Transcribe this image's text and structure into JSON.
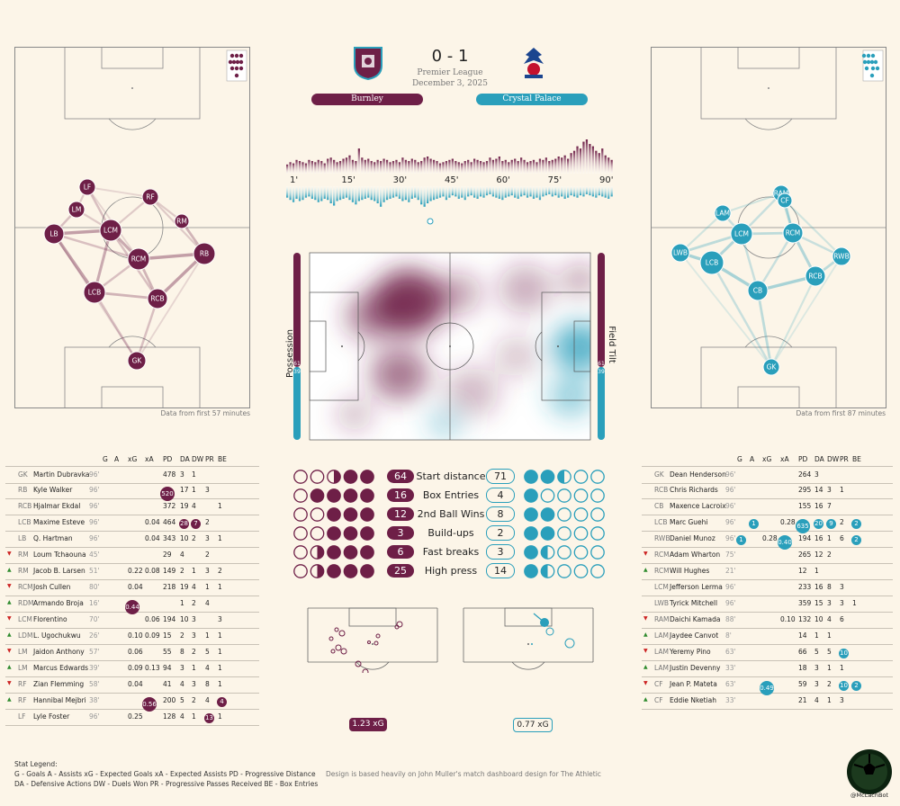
{
  "colors": {
    "home": "#6e1f47",
    "away": "#2a9fbb",
    "bg": "#fcf5e8"
  },
  "header": {
    "score": "0 - 1",
    "competition": "Premier League",
    "date": "December 3, 2025",
    "home_team": "Burnley",
    "away_team": "Crystal Palace"
  },
  "home_pitch_note": "Data from first 57 minutes",
  "away_pitch_note": "Data from first 87 minutes",
  "home_positions": [
    "LF",
    "RF",
    "LM",
    "RM",
    "LCM",
    "LB",
    "RCM",
    "RB",
    "LCB",
    "RCB",
    "GK"
  ],
  "away_positions": [
    "RAM",
    "CF",
    "LAM",
    "LCM",
    "RCM",
    "LWB",
    "RWB",
    "LCB",
    "RCB",
    "CB",
    "GK"
  ],
  "chart_data": [
    {
      "type": "bar",
      "title": "",
      "categories_ticks": [
        "1'",
        "15'",
        "30'",
        "45'",
        "60'",
        "75'",
        "90'"
      ],
      "series": [
        {
          "values": [
            8,
            10,
            9,
            12,
            11,
            10,
            9,
            12,
            11,
            10,
            12,
            11,
            9,
            13,
            14,
            12,
            10,
            11,
            13,
            14,
            16,
            12,
            11,
            22,
            14,
            12,
            13,
            11,
            10,
            12,
            11,
            13,
            12,
            10,
            11,
            12,
            10,
            14,
            12,
            11,
            13,
            12,
            10,
            11,
            14,
            15,
            13,
            12,
            11,
            9,
            10,
            11,
            12,
            13,
            11,
            10,
            9,
            11,
            12,
            10,
            13,
            12,
            11,
            10,
            11,
            14,
            12,
            13,
            15,
            11,
            12,
            10,
            12,
            13,
            11,
            14,
            12,
            10,
            11,
            12,
            10,
            13,
            12,
            14,
            11,
            12,
            13,
            15,
            14,
            16,
            13,
            18,
            20,
            24,
            22,
            28,
            30,
            26,
            24,
            20,
            18,
            22,
            16,
            14,
            12
          ]
        },
        {
          "values": [
            10,
            12,
            14,
            11,
            13,
            12,
            10,
            9,
            11,
            12,
            14,
            13,
            11,
            12,
            15,
            17,
            13,
            12,
            11,
            10,
            12,
            14,
            16,
            13,
            12,
            11,
            10,
            12,
            13,
            15,
            18,
            14,
            12,
            11,
            10,
            9,
            11,
            13,
            12,
            14,
            11,
            10,
            12,
            16,
            18,
            15,
            13,
            12,
            11,
            10,
            9,
            12,
            10,
            8,
            9,
            11,
            10,
            12,
            9,
            8,
            10,
            11,
            9,
            10,
            8,
            7,
            9,
            10,
            11,
            12,
            10,
            9,
            8,
            10,
            11,
            9,
            8,
            10,
            9,
            11,
            10,
            12,
            9,
            8,
            7,
            9,
            8,
            10,
            9,
            11,
            10,
            8,
            9,
            10,
            8,
            9,
            7,
            8,
            9,
            10,
            8,
            9,
            10,
            11,
            9
          ]
        }
      ],
      "possession": {
        "home": 61,
        "away": 39
      },
      "field_tilt": {
        "home": 61,
        "away": 39
      }
    },
    {
      "type": "table",
      "title": "",
      "rows": [
        {
          "label": "Start distance",
          "home": 64,
          "away": 71,
          "home_share": 0.47,
          "away_share": 0.53
        },
        {
          "label": "Box Entries",
          "home": 16,
          "away": 4,
          "home_share": 0.8,
          "away_share": 0.2
        },
        {
          "label": "2nd Ball Wins",
          "home": 12,
          "away": 8,
          "home_share": 0.6,
          "away_share": 0.4
        },
        {
          "label": "Build-ups",
          "home": 3,
          "away": 2,
          "home_share": 0.6,
          "away_share": 0.4
        },
        {
          "label": "Fast breaks",
          "home": 6,
          "away": 3,
          "home_share": 0.67,
          "away_share": 0.33
        },
        {
          "label": "High press",
          "home": 25,
          "away": 14,
          "home_share": 0.64,
          "away_share": 0.36
        }
      ]
    },
    {
      "type": "scatter",
      "title": "",
      "home_xg": "1.23 xG",
      "away_xg": "0.77 xG"
    }
  ],
  "table_headers": [
    "G",
    "A",
    "xG",
    "xA",
    "PD",
    "DA",
    "DW",
    "PR",
    "BE"
  ],
  "home_players": [
    {
      "arrow": "",
      "pos": "GK",
      "name": "Martin Dubravka",
      "min": "96'",
      "G": "",
      "A": "",
      "xG": "",
      "xA": "",
      "PD": "478",
      "DA": "3",
      "DW": "1",
      "PR": "",
      "BE": ""
    },
    {
      "arrow": "",
      "pos": "RB",
      "name": "Kyle Walker",
      "min": "96'",
      "G": "",
      "A": "",
      "xG": "",
      "xA": "",
      "PD": "520",
      "DA": "17",
      "DW": "1",
      "PR": "3",
      "BE": "",
      "hl": [
        "PD"
      ]
    },
    {
      "arrow": "",
      "pos": "RCB",
      "name": "Hjalmar Ekdal",
      "min": "96'",
      "G": "",
      "A": "",
      "xG": "",
      "xA": "",
      "PD": "372",
      "DA": "19",
      "DW": "4",
      "PR": "",
      "BE": "1"
    },
    {
      "arrow": "",
      "pos": "LCB",
      "name": "Maxime Esteve",
      "min": "96'",
      "G": "",
      "A": "",
      "xG": "",
      "xA": "0.04",
      "PD": "464",
      "DA": "28",
      "DW": "7",
      "PR": "2",
      "BE": "",
      "hl": [
        "DA",
        "DW"
      ]
    },
    {
      "arrow": "",
      "pos": "LB",
      "name": "Q. Hartman",
      "min": "96'",
      "G": "",
      "A": "",
      "xG": "",
      "xA": "0.04",
      "PD": "343",
      "DA": "10",
      "DW": "2",
      "PR": "3",
      "BE": "1"
    },
    {
      "arrow": "down",
      "pos": "RM",
      "name": "Loum Tchaouna",
      "min": "45'",
      "G": "",
      "A": "",
      "xG": "",
      "xA": "",
      "PD": "29",
      "DA": "4",
      "DW": "",
      "PR": "2",
      "BE": ""
    },
    {
      "arrow": "up",
      "pos": "RM",
      "name": "Jacob B. Larsen",
      "min": "51'",
      "G": "",
      "A": "",
      "xG": "0.22",
      "xA": "0.08",
      "PD": "149",
      "DA": "2",
      "DW": "1",
      "PR": "3",
      "BE": "2"
    },
    {
      "arrow": "down",
      "pos": "RCM",
      "name": "Josh Cullen",
      "min": "80'",
      "G": "",
      "A": "",
      "xG": "0.04",
      "xA": "",
      "PD": "218",
      "DA": "19",
      "DW": "4",
      "PR": "1",
      "BE": "1"
    },
    {
      "arrow": "up",
      "pos": "RDM",
      "name": "Armando Broja",
      "min": "16'",
      "G": "",
      "A": "",
      "xG": "0.44",
      "xA": "",
      "PD": "",
      "DA": "1",
      "DW": "2",
      "PR": "4",
      "BE": "",
      "hl": [
        "xG"
      ]
    },
    {
      "arrow": "down",
      "pos": "LCM",
      "name": "Florentino",
      "min": "70'",
      "G": "",
      "A": "",
      "xG": "",
      "xA": "0.06",
      "PD": "194",
      "DA": "10",
      "DW": "3",
      "PR": "",
      "BE": "3"
    },
    {
      "arrow": "up",
      "pos": "LDM",
      "name": "L. Ugochukwu",
      "min": "26'",
      "G": "",
      "A": "",
      "xG": "0.10",
      "xA": "0.09",
      "PD": "15",
      "DA": "2",
      "DW": "3",
      "PR": "1",
      "BE": "1"
    },
    {
      "arrow": "down",
      "pos": "LM",
      "name": "Jaidon Anthony",
      "min": "57'",
      "G": "",
      "A": "",
      "xG": "0.06",
      "xA": "",
      "PD": "55",
      "DA": "8",
      "DW": "2",
      "PR": "5",
      "BE": "1"
    },
    {
      "arrow": "up",
      "pos": "LM",
      "name": "Marcus Edwards",
      "min": "39'",
      "G": "",
      "A": "",
      "xG": "0.09",
      "xA": "0.13",
      "PD": "94",
      "DA": "3",
      "DW": "1",
      "PR": "4",
      "BE": "1"
    },
    {
      "arrow": "down",
      "pos": "RF",
      "name": "Zian Flemming",
      "min": "58'",
      "G": "",
      "A": "",
      "xG": "0.04",
      "xA": "",
      "PD": "41",
      "DA": "4",
      "DW": "3",
      "PR": "8",
      "BE": "1"
    },
    {
      "arrow": "up",
      "pos": "RF",
      "name": "Hannibal Mejbri",
      "min": "38'",
      "G": "",
      "A": "",
      "xG": "",
      "xA": "0.56",
      "PD": "200",
      "DA": "5",
      "DW": "2",
      "PR": "4",
      "BE": "4",
      "hl": [
        "xA",
        "BE"
      ]
    },
    {
      "arrow": "",
      "pos": "LF",
      "name": "Lyle Foster",
      "min": "96'",
      "G": "",
      "A": "",
      "xG": "0.25",
      "xA": "",
      "PD": "128",
      "DA": "4",
      "DW": "1",
      "PR": "13",
      "BE": "1",
      "hl": [
        "PR"
      ]
    }
  ],
  "away_players": [
    {
      "arrow": "",
      "pos": "GK",
      "name": "Dean Henderson",
      "min": "96'",
      "G": "",
      "A": "",
      "xG": "",
      "xA": "",
      "PD": "264",
      "DA": "3",
      "DW": "",
      "PR": "",
      "BE": ""
    },
    {
      "arrow": "",
      "pos": "RCB",
      "name": "Chris Richards",
      "min": "96'",
      "G": "",
      "A": "",
      "xG": "",
      "xA": "",
      "PD": "295",
      "DA": "14",
      "DW": "3",
      "PR": "1",
      "BE": ""
    },
    {
      "arrow": "",
      "pos": "CB",
      "name": "Maxence Lacroix",
      "min": "96'",
      "G": "",
      "A": "",
      "xG": "",
      "xA": "",
      "PD": "155",
      "DA": "16",
      "DW": "7",
      "PR": "",
      "BE": ""
    },
    {
      "arrow": "",
      "pos": "LCB",
      "name": "Marc Guehi",
      "min": "96'",
      "G": "",
      "A": "1",
      "xG": "",
      "xA": "0.28",
      "PD": "635",
      "DA": "20",
      "DW": "9",
      "PR": "2",
      "BE": "2",
      "hl": [
        "A",
        "PD",
        "DA",
        "DW",
        "BE"
      ]
    },
    {
      "arrow": "",
      "pos": "RWB",
      "name": "Daniel Munoz",
      "min": "96'",
      "G": "1",
      "A": "",
      "xG": "0.28",
      "xA": "0.40",
      "PD": "194",
      "DA": "16",
      "DW": "1",
      "PR": "6",
      "BE": "2",
      "hl": [
        "G",
        "xA",
        "BE"
      ]
    },
    {
      "arrow": "down",
      "pos": "RCM",
      "name": "Adam Wharton",
      "min": "75'",
      "G": "",
      "A": "",
      "xG": "",
      "xA": "",
      "PD": "265",
      "DA": "12",
      "DW": "2",
      "PR": "",
      "BE": ""
    },
    {
      "arrow": "up",
      "pos": "RCM",
      "name": "Will Hughes",
      "min": "21'",
      "G": "",
      "A": "",
      "xG": "",
      "xA": "",
      "PD": "12",
      "DA": "1",
      "DW": "",
      "PR": "",
      "BE": ""
    },
    {
      "arrow": "",
      "pos": "LCM",
      "name": "Jefferson Lerma",
      "min": "96'",
      "G": "",
      "A": "",
      "xG": "",
      "xA": "",
      "PD": "233",
      "DA": "16",
      "DW": "8",
      "PR": "3",
      "BE": ""
    },
    {
      "arrow": "",
      "pos": "LWB",
      "name": "Tyrick Mitchell",
      "min": "96'",
      "G": "",
      "A": "",
      "xG": "",
      "xA": "",
      "PD": "359",
      "DA": "15",
      "DW": "3",
      "PR": "3",
      "BE": "1"
    },
    {
      "arrow": "down",
      "pos": "RAM",
      "name": "Daichi Kamada",
      "min": "88'",
      "G": "",
      "A": "",
      "xG": "",
      "xA": "0.10",
      "PD": "132",
      "DA": "10",
      "DW": "4",
      "PR": "6",
      "BE": ""
    },
    {
      "arrow": "up",
      "pos": "LAM",
      "name": "Jaydee Canvot",
      "min": "8'",
      "G": "",
      "A": "",
      "xG": "",
      "xA": "",
      "PD": "14",
      "DA": "1",
      "DW": "1",
      "PR": "",
      "BE": ""
    },
    {
      "arrow": "down",
      "pos": "LAM",
      "name": "Yeremy Pino",
      "min": "63'",
      "G": "",
      "A": "",
      "xG": "",
      "xA": "",
      "PD": "66",
      "DA": "5",
      "DW": "5",
      "PR": "10",
      "BE": "",
      "hl": [
        "PR"
      ]
    },
    {
      "arrow": "up",
      "pos": "LAM",
      "name": "Justin Devenny",
      "min": "33'",
      "G": "",
      "A": "",
      "xG": "",
      "xA": "",
      "PD": "18",
      "DA": "3",
      "DW": "1",
      "PR": "1",
      "BE": ""
    },
    {
      "arrow": "down",
      "pos": "CF",
      "name": "Jean P. Mateta",
      "min": "63'",
      "G": "",
      "A": "",
      "xG": "0.49",
      "xA": "",
      "PD": "59",
      "DA": "3",
      "DW": "2",
      "PR": "10",
      "BE": "2",
      "hl": [
        "xG",
        "PR",
        "BE"
      ]
    },
    {
      "arrow": "up",
      "pos": "CF",
      "name": "Eddie Nketiah",
      "min": "33'",
      "G": "",
      "A": "",
      "xG": "",
      "xA": "",
      "PD": "21",
      "DA": "4",
      "DW": "1",
      "PR": "3",
      "BE": ""
    }
  ],
  "legend": {
    "title": "Stat Legend:",
    "line1": "G - Goals  A - Assists  xG - Expected Goals  xA - Expected Assists  PD - Progressive Distance",
    "line2": "DA - Defensive Actions  DW - Duels Won  PR - Progressive Passes Received  BE - Box Entries",
    "credit": "Design is based heavily on John Muller's match dashboard design for The Athletic",
    "handle": "@McLachBot"
  },
  "vert_labels": {
    "left": "Possession",
    "right": "Field Tilt",
    "left_top": "61",
    "left_bot": "39",
    "right_top": "61",
    "right_bot": "39"
  }
}
